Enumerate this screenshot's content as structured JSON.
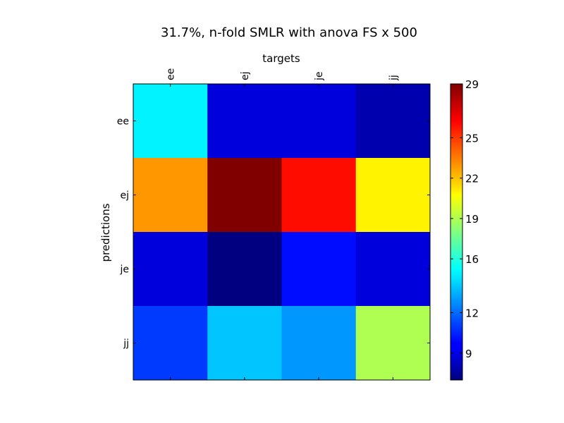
{
  "chart_data": {
    "type": "heatmap",
    "title": "31.7%, n-fold SMLR with anova FS x 500",
    "xlabel": "targets",
    "ylabel": "predictions",
    "x_categories": [
      "ee",
      "ej",
      "je",
      "jj"
    ],
    "y_categories": [
      "ee",
      "ej",
      "je",
      "jj"
    ],
    "values": [
      [
        15,
        9,
        9,
        8
      ],
      [
        23,
        29,
        26,
        21
      ],
      [
        9,
        7,
        10,
        9
      ],
      [
        11,
        14,
        13,
        19
      ]
    ],
    "colorbar": {
      "min": 7,
      "max": 29,
      "ticks": [
        9,
        12,
        16,
        19,
        22,
        25,
        29
      ],
      "colormap": "jet"
    }
  }
}
